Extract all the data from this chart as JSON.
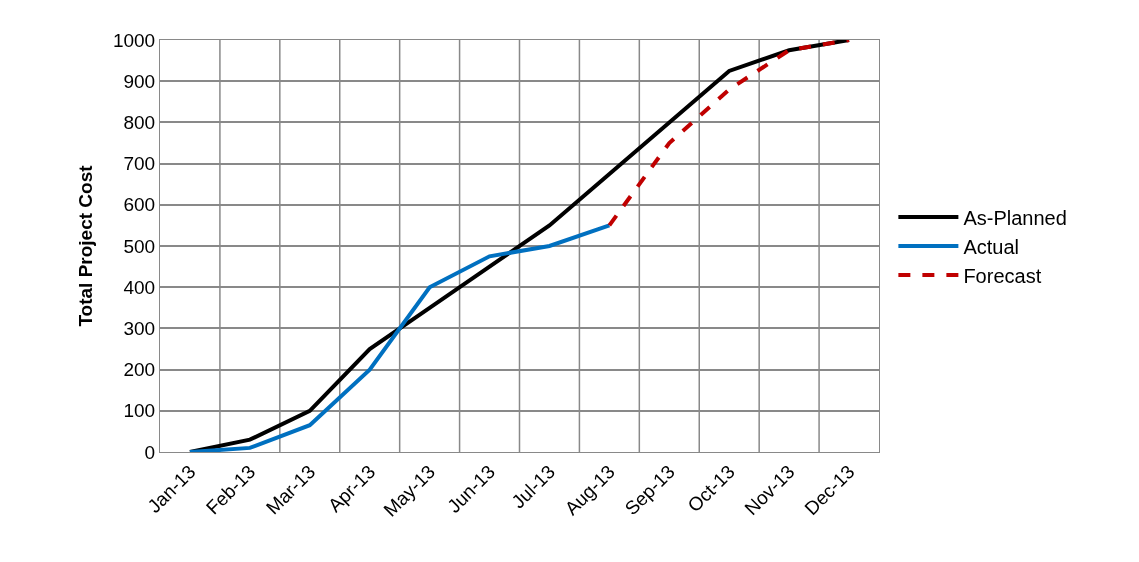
{
  "chart_data": {
    "type": "line",
    "ylabel": "Total Project Cost",
    "categories": [
      "Jan-13",
      "Feb-13",
      "Mar-13",
      "Apr-13",
      "May-13",
      "Jun-13",
      "Jul-13",
      "Aug-13",
      "Sep-13",
      "Oct-13",
      "Nov-13",
      "Dec-13"
    ],
    "ylim": [
      0,
      1000
    ],
    "yticks": [
      0,
      100,
      200,
      300,
      400,
      500,
      600,
      700,
      800,
      900,
      1000
    ],
    "grid": true,
    "legend": "right",
    "marker": "none",
    "series": [
      {
        "name": "As-Planned",
        "color": "#000000",
        "line_style": "solid",
        "values": [
          0,
          30,
          100,
          250,
          350,
          450,
          550,
          675,
          800,
          925,
          975,
          1000
        ]
      },
      {
        "name": "Actual",
        "color": "#0070c0",
        "line_style": "solid",
        "values": [
          0,
          10,
          65,
          200,
          400,
          475,
          500,
          550,
          null,
          null,
          null,
          null
        ]
      },
      {
        "name": "Forecast",
        "color": "#c00000",
        "line_style": "dashed",
        "values": [
          null,
          null,
          null,
          null,
          null,
          null,
          null,
          550,
          750,
          880,
          975,
          1000
        ]
      }
    ]
  }
}
